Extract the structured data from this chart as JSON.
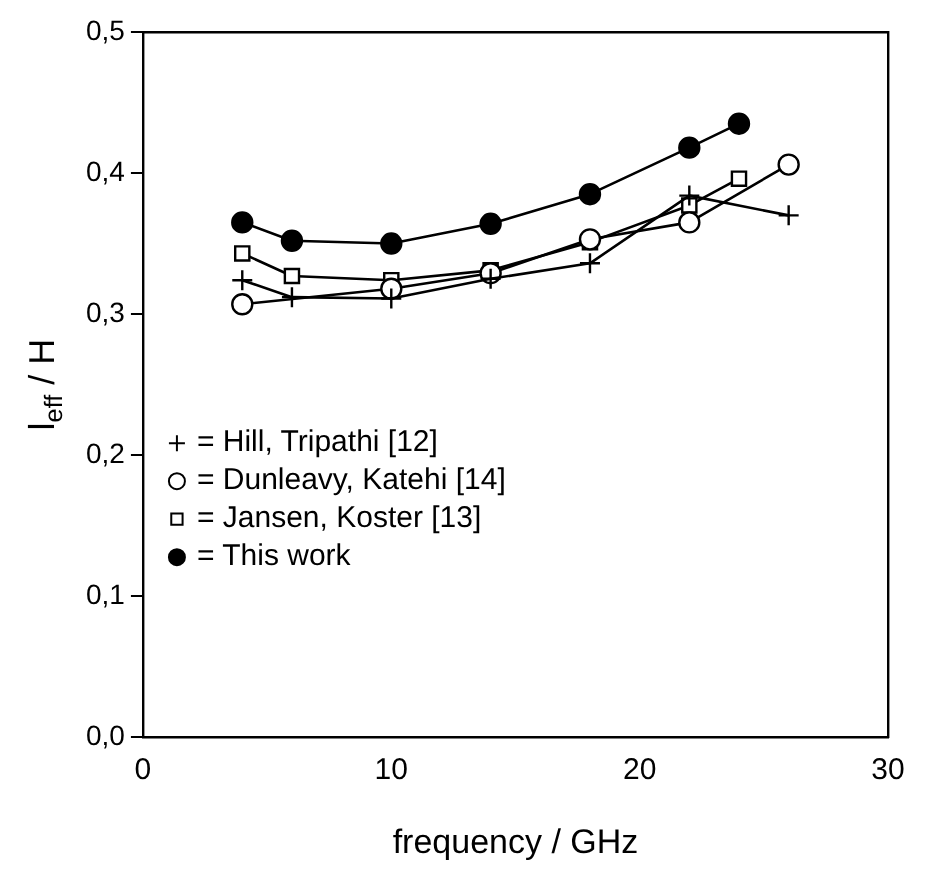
{
  "chart_data": {
    "type": "line",
    "xlabel": "frequency / GHz",
    "ylabel": "l$_{eff}$ / H",
    "xlim": [
      0,
      30
    ],
    "xticks": [
      0,
      10,
      20,
      30
    ],
    "ylim": [
      0,
      0.5
    ],
    "yticks": [
      {
        "value": 0,
        "label": "0,0"
      },
      {
        "value": 0.1,
        "label": "0,1"
      },
      {
        "value": 0.2,
        "label": "0,2"
      },
      {
        "value": 0.3,
        "label": "0,3"
      },
      {
        "value": 0.4,
        "label": "0,4"
      },
      {
        "value": 0.5,
        "label": "0,5"
      }
    ],
    "grid": false,
    "legend": "bottom left",
    "line_style": "solid",
    "series": [
      {
        "name": "= Hill, Tripathi [12]",
        "color": "#000000",
        "marker": "cross",
        "x": [
          4,
          6,
          10,
          14,
          18,
          22,
          26
        ],
        "values": [
          0.324,
          0.312,
          0.311,
          0.325,
          0.336,
          0.384,
          0.37
        ]
      },
      {
        "name": "= Dunleavy, Katehi [14]",
        "color": "#000000",
        "marker": "circle",
        "x": [
          4,
          10,
          14,
          18,
          22,
          26
        ],
        "values": [
          0.307,
          0.318,
          0.329,
          0.353,
          0.365,
          0.406
        ]
      },
      {
        "name": "= Jansen, Koster [13]",
        "color": "#000000",
        "marker": "square",
        "x": [
          4,
          6,
          10,
          14,
          18,
          22,
          24
        ],
        "values": [
          0.343,
          0.327,
          0.324,
          0.331,
          0.351,
          0.377,
          0.396
        ]
      },
      {
        "name": "= This work",
        "color": "#000000",
        "marker": "circle",
        "x": [
          4,
          6,
          10,
          14,
          18,
          22,
          24
        ],
        "values": [
          0.365,
          0.352,
          0.35,
          0.364,
          0.385,
          0.418,
          0.435
        ]
      }
    ]
  }
}
